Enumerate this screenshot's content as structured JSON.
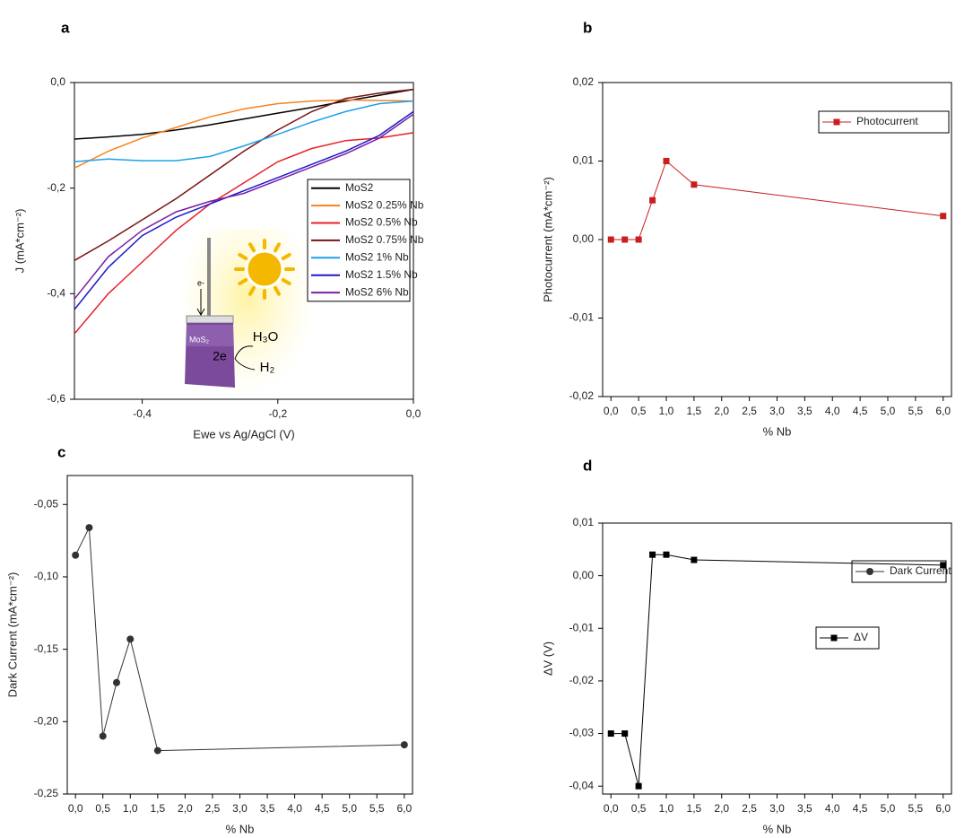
{
  "chart_data": [
    {
      "type": "line",
      "panel": "a",
      "xlabel": "Ewe vs Ag/AgCl (V)",
      "ylabel": "J (mA*cm⁻²)",
      "xlim": [
        -0.5,
        0
      ],
      "ylim": [
        -0.6,
        0
      ],
      "xticks": [
        {
          "value": -0.4,
          "label": "-0,4"
        },
        {
          "value": -0.2,
          "label": "-0,2"
        },
        {
          "value": 0,
          "label": "0,0"
        }
      ],
      "yticks": [
        {
          "value": 0,
          "label": "0,0"
        },
        {
          "value": -0.2,
          "label": "-0,2"
        },
        {
          "value": -0.4,
          "label": "-0,4"
        },
        {
          "value": -0.6,
          "label": "-0,6"
        }
      ],
      "annotations": [
        "MoS₂",
        "2e",
        "H₃O",
        "H₂",
        "e-"
      ],
      "x": [
        -0.5,
        -0.45,
        -0.4,
        -0.35,
        -0.3,
        -0.25,
        -0.2,
        -0.15,
        -0.1,
        -0.05,
        0
      ],
      "series": [
        {
          "name": "MoS2",
          "color": "#000000",
          "values": [
            -0.107,
            -0.103,
            -0.098,
            -0.09,
            -0.08,
            -0.069,
            -0.058,
            -0.047,
            -0.035,
            -0.024,
            -0.013
          ]
        },
        {
          "name": "MoS2 0.25% Nb",
          "color": "#f5821f",
          "values": [
            -0.162,
            -0.13,
            -0.105,
            -0.085,
            -0.065,
            -0.05,
            -0.04,
            -0.035,
            -0.033,
            -0.034,
            -0.035
          ]
        },
        {
          "name": "MoS2 0.5% Nb",
          "color": "#e8202a",
          "values": [
            -0.476,
            -0.4,
            -0.34,
            -0.28,
            -0.23,
            -0.19,
            -0.15,
            -0.125,
            -0.11,
            -0.105,
            -0.095
          ]
        },
        {
          "name": "MoS2 0.75% Nb",
          "color": "#7b1414",
          "values": [
            -0.337,
            -0.3,
            -0.26,
            -0.22,
            -0.175,
            -0.13,
            -0.09,
            -0.055,
            -0.03,
            -0.02,
            -0.013
          ]
        },
        {
          "name": "MoS2 1% Nb",
          "color": "#1ea0e8",
          "values": [
            -0.15,
            -0.145,
            -0.148,
            -0.148,
            -0.14,
            -0.12,
            -0.098,
            -0.075,
            -0.055,
            -0.04,
            -0.035
          ]
        },
        {
          "name": "MoS2 1.5% Nb",
          "color": "#1a1acc",
          "values": [
            -0.43,
            -0.35,
            -0.29,
            -0.255,
            -0.23,
            -0.205,
            -0.18,
            -0.155,
            -0.13,
            -0.1,
            -0.055
          ]
        },
        {
          "name": "MoS2 6% Nb",
          "color": "#7a1fa2",
          "values": [
            -0.41,
            -0.33,
            -0.28,
            -0.245,
            -0.225,
            -0.21,
            -0.185,
            -0.16,
            -0.135,
            -0.105,
            -0.06
          ]
        }
      ]
    },
    {
      "type": "line",
      "panel": "b",
      "xlabel": "% Nb",
      "ylabel": "Photocurrent (mA*cm⁻²)",
      "marker": "square",
      "xlim": [
        -0.15,
        6.15
      ],
      "ylim": [
        -0.02,
        0.02
      ],
      "xticks": [
        {
          "value": 0,
          "label": "0,0"
        },
        {
          "value": 0.5,
          "label": "0,5"
        },
        {
          "value": 1,
          "label": "1,0"
        },
        {
          "value": 1.5,
          "label": "1,5"
        },
        {
          "value": 2,
          "label": "2,0"
        },
        {
          "value": 2.5,
          "label": "2,5"
        },
        {
          "value": 3,
          "label": "3,0"
        },
        {
          "value": 3.5,
          "label": "3,5"
        },
        {
          "value": 4,
          "label": "4,0"
        },
        {
          "value": 4.5,
          "label": "4,5"
        },
        {
          "value": 5,
          "label": "5,0"
        },
        {
          "value": 5.5,
          "label": "5,5"
        },
        {
          "value": 6,
          "label": "6,0"
        }
      ],
      "yticks": [
        {
          "value": 0.02,
          "label": "0,02"
        },
        {
          "value": 0.01,
          "label": "0,01"
        },
        {
          "value": 0,
          "label": "0,00"
        },
        {
          "value": -0.01,
          "label": "-0,01"
        },
        {
          "value": -0.02,
          "label": "-0,02"
        }
      ],
      "x": [
        0,
        0.25,
        0.5,
        0.75,
        1,
        1.5,
        6
      ],
      "series": [
        {
          "name": "Photocurrent",
          "color": "#c81e1e",
          "values": [
            0,
            0,
            0,
            0.005,
            0.01,
            0.007,
            0.003
          ]
        }
      ]
    },
    {
      "type": "line",
      "panel": "c",
      "xlabel": "% Nb",
      "ylabel": "Dark Current (mA*cm⁻²)",
      "marker": "circle",
      "xlim": [
        -0.15,
        6.15
      ],
      "ylim": [
        -0.25,
        -0.03
      ],
      "xticks": [
        {
          "value": 0,
          "label": "0,0"
        },
        {
          "value": 0.5,
          "label": "0,5"
        },
        {
          "value": 1,
          "label": "1,0"
        },
        {
          "value": 1.5,
          "label": "1,5"
        },
        {
          "value": 2,
          "label": "2,0"
        },
        {
          "value": 2.5,
          "label": "2,5"
        },
        {
          "value": 3,
          "label": "3,0"
        },
        {
          "value": 3.5,
          "label": "3,5"
        },
        {
          "value": 4,
          "label": "4,0"
        },
        {
          "value": 4.5,
          "label": "4,5"
        },
        {
          "value": 5,
          "label": "5,0"
        },
        {
          "value": 5.5,
          "label": "5,5"
        },
        {
          "value": 6,
          "label": "6,0"
        }
      ],
      "yticks": [
        {
          "value": -0.05,
          "label": "-0,05"
        },
        {
          "value": -0.1,
          "label": "-0,10"
        },
        {
          "value": -0.15,
          "label": "-0,15"
        },
        {
          "value": -0.2,
          "label": "-0,20"
        },
        {
          "value": -0.25,
          "label": "-0,25"
        }
      ],
      "x": [
        0,
        0.25,
        0.5,
        0.75,
        1,
        1.5,
        6
      ],
      "series": [
        {
          "name": "Dark Current",
          "color": "#333333",
          "values": [
            -0.085,
            -0.066,
            -0.21,
            -0.173,
            -0.143,
            -0.22,
            -0.216
          ]
        }
      ]
    },
    {
      "type": "line",
      "panel": "d",
      "xlabel": "% Nb",
      "ylabel": "ΔV (V)",
      "marker": "square",
      "xlim": [
        -0.15,
        6.15
      ],
      "ylim": [
        -0.0415,
        0.01
      ],
      "xticks": [
        {
          "value": 0,
          "label": "0,0"
        },
        {
          "value": 0.5,
          "label": "0,5"
        },
        {
          "value": 1,
          "label": "1,0"
        },
        {
          "value": 1.5,
          "label": "1,5"
        },
        {
          "value": 2,
          "label": "2,0"
        },
        {
          "value": 2.5,
          "label": "2,5"
        },
        {
          "value": 3,
          "label": "3,0"
        },
        {
          "value": 3.5,
          "label": "3,5"
        },
        {
          "value": 4,
          "label": "4,0"
        },
        {
          "value": 4.5,
          "label": "4,5"
        },
        {
          "value": 5,
          "label": "5,0"
        },
        {
          "value": 5.5,
          "label": "5,5"
        },
        {
          "value": 6,
          "label": "6,0"
        }
      ],
      "yticks": [
        {
          "value": 0.01,
          "label": "0,01"
        },
        {
          "value": 0,
          "label": "0,00"
        },
        {
          "value": -0.01,
          "label": "-0,01"
        },
        {
          "value": -0.02,
          "label": "-0,02"
        },
        {
          "value": -0.03,
          "label": "-0,03"
        },
        {
          "value": -0.04,
          "label": "-0,04"
        }
      ],
      "x": [
        0,
        0.25,
        0.5,
        0.75,
        1,
        1.5,
        6
      ],
      "series": [
        {
          "name": "ΔV",
          "color": "#000000",
          "values": [
            -0.03,
            -0.03,
            -0.04,
            0.004,
            0.004,
            0.003,
            0.002
          ]
        }
      ]
    }
  ]
}
